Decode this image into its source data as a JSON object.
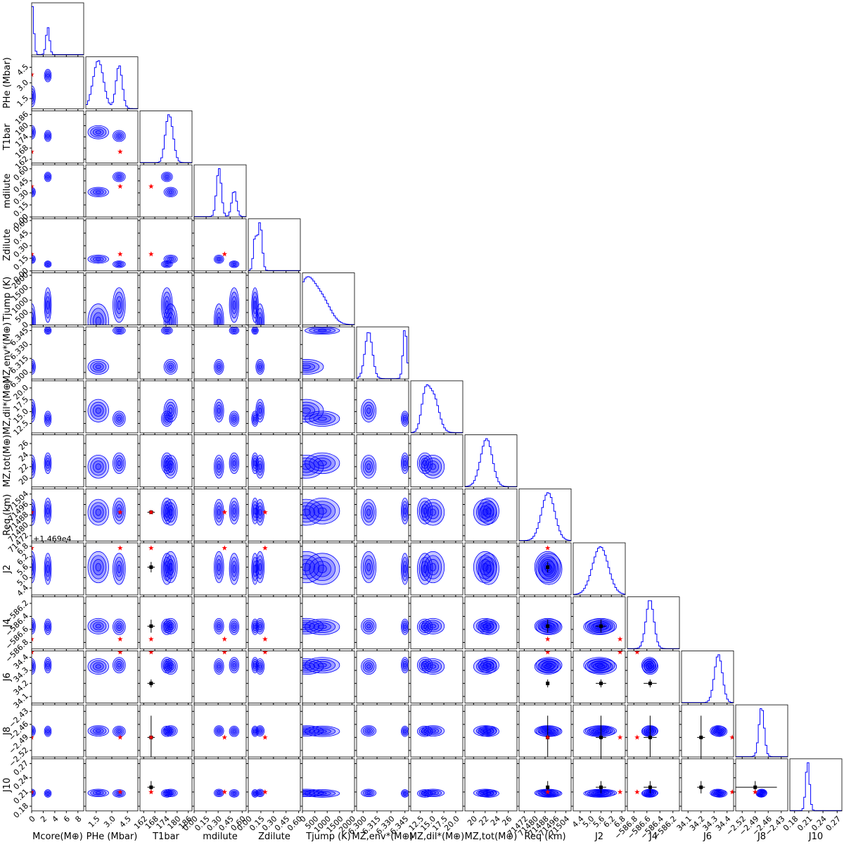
{
  "chart_data": {
    "type": "corner",
    "color": "#0000ff",
    "truth_color": "#ff0000",
    "observed_color": "#000000",
    "params": [
      {
        "label": "Mcore(M⊕)",
        "lim": [
          0,
          9
        ],
        "ticks": [
          0,
          2,
          4,
          6,
          8
        ]
      },
      {
        "label": "PHe (Mbar)",
        "lim": [
          0.5,
          5.5
        ],
        "ticks": [
          1.5,
          {
            "value": 3,
            "label": "3.0"
          },
          4.5
        ]
      },
      {
        "label": "T1bar",
        "lim": [
          160,
          188
        ],
        "ticks": [
          162,
          168,
          174,
          180,
          186
        ]
      },
      {
        "label": "mdilute",
        "lim": [
          0,
          0.65
        ],
        "ticks": [
          {
            "value": 0,
            "label": "0.00"
          },
          0.15,
          {
            "value": 0.3,
            "label": "0.30"
          },
          0.45,
          {
            "value": 0.6,
            "label": "0.60"
          }
        ]
      },
      {
        "label": "Zdilute",
        "lim": [
          0,
          0.62
        ],
        "ticks": [
          {
            "value": 0,
            "label": "0.00"
          },
          0.15,
          {
            "value": 0.3,
            "label": "0.30"
          },
          0.45,
          {
            "value": 0.6,
            "label": "0.60"
          }
        ]
      },
      {
        "label": "Tjump (K)",
        "lim": [
          0,
          2100
        ],
        "ticks": [
          0,
          500,
          1000,
          1500,
          2000
        ]
      },
      {
        "label": "MZ,env*(M⊕)",
        "lim": [
          6.293,
          6.349
        ],
        "ticks": [
          {
            "value": 6.3,
            "label": "6.300"
          },
          6.315,
          {
            "value": 6.33,
            "label": "6.330"
          },
          6.345
        ]
      },
      {
        "label": "MZ,dil*(M⊕)",
        "lim": [
          10.5,
          21.5
        ],
        "ticks": [
          12.5,
          {
            "value": 15,
            "label": "15.0"
          },
          17.5,
          {
            "value": 20,
            "label": "20.0"
          }
        ]
      },
      {
        "label": "MZ,tot(M⊕)",
        "lim": [
          18.5,
          27.5
        ],
        "ticks": [
          20,
          22,
          24,
          26
        ]
      },
      {
        "label": "Req (km)",
        "lim": [
          71468,
          71508
        ],
        "ticks": [
          71472,
          71480,
          71488,
          71496,
          71504
        ]
      },
      {
        "label": "J2",
        "lim": [
          14694,
          14697
        ],
        "offset_label": "+1.469e4",
        "ticks": [
          {
            "value": 14694.4,
            "label": "4.4"
          },
          {
            "value": 14695,
            "label": "5.0"
          },
          {
            "value": 14695.6,
            "label": "5.6"
          },
          {
            "value": 14696.2,
            "label": "6.2"
          },
          {
            "value": 14696.8,
            "label": "6.8"
          }
        ]
      },
      {
        "label": "J4",
        "lim": [
          -586.9,
          -586.1
        ],
        "ticks": [
          {
            "value": -586.8,
            "label": "−586.8"
          },
          {
            "value": -586.6,
            "label": "−586.6"
          },
          {
            "value": -586.4,
            "label": "−586.4"
          },
          {
            "value": -586.2,
            "label": "−586.2"
          }
        ]
      },
      {
        "label": "J6",
        "lim": [
          34.05,
          34.45
        ],
        "ticks": [
          34.1,
          34.2,
          34.3,
          34.4
        ]
      },
      {
        "label": "J8",
        "lim": [
          -2.535,
          -2.415
        ],
        "ticks": [
          {
            "value": -2.52,
            "label": "−2.52"
          },
          {
            "value": -2.49,
            "label": "−2.49"
          },
          {
            "value": -2.46,
            "label": "−2.46"
          },
          {
            "value": -2.43,
            "label": "−2.43"
          }
        ]
      },
      {
        "label": "J10",
        "lim": [
          0.17,
          0.28
        ],
        "ticks": [
          0.18,
          0.21,
          0.24,
          0.27
        ]
      }
    ],
    "components": [
      {
        "weight": 0.65,
        "mean": [
          0.05,
          1.7,
          176.5,
          0.31,
          0.14,
          150,
          6.306,
          15.2,
          22,
          71490,
          14695.6,
          -586.55,
          34.33,
          -2.475,
          0.208
        ],
        "sd": [
          0.3,
          0.5,
          1.8,
          0.03,
          0.025,
          350,
          0.004,
          1.2,
          1,
          5,
          0.45,
          0.06,
          0.03,
          0.006,
          0.004
        ]
      },
      {
        "weight": 0.35,
        "mean": [
          2.8,
          3.7,
          174.5,
          0.5,
          0.08,
          800,
          6.345,
          13.5,
          22.6,
          71491,
          14695.5,
          -586.56,
          34.34,
          -2.476,
          0.207
        ],
        "sd": [
          0.3,
          0.3,
          1.5,
          0.03,
          0.02,
          350,
          0.002,
          0.8,
          0.9,
          5,
          0.45,
          0.06,
          0.03,
          0.006,
          0.004
        ]
      }
    ],
    "truth": [
      0,
      3.8,
      166,
      0.38,
      0.2,
      null,
      null,
      null,
      null,
      71490,
      14696.7,
      -586.75,
      34.44,
      -2.49,
      0.21
    ],
    "observed": [
      null,
      null,
      {
        "value": 166,
        "error": 2
      },
      null,
      null,
      null,
      null,
      null,
      null,
      {
        "value": 71490,
        "error": 1
      },
      {
        "value": 14695.6,
        "error": 0.3
      },
      {
        "value": -586.55,
        "error": 0.1
      },
      {
        "value": 34.2,
        "error": 0.03
      },
      {
        "value": -2.49,
        "error": 0.05
      },
      {
        "value": 0.22,
        "error": 0.013
      }
    ]
  }
}
